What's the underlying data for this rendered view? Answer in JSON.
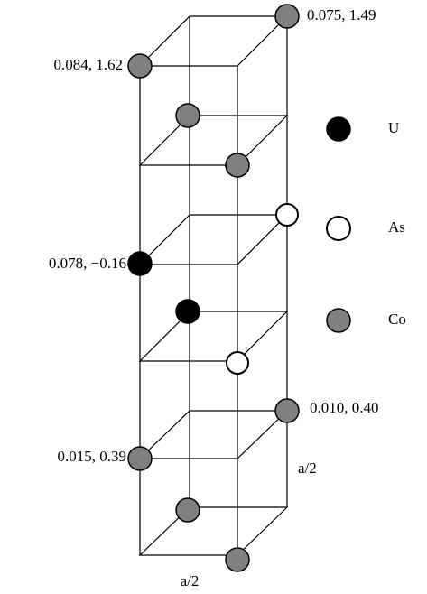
{
  "labels": [
    "0.075, 1.49",
    "0.084, 1.62",
    "0.078, −0.16",
    "0.010, 0.40",
    "0.015, 0.39"
  ],
  "dimensions": {
    "bottom": "a/2",
    "side": "a/2"
  },
  "legend": [
    {
      "label": "U"
    },
    {
      "label": "As"
    },
    {
      "label": "Co"
    }
  ]
}
